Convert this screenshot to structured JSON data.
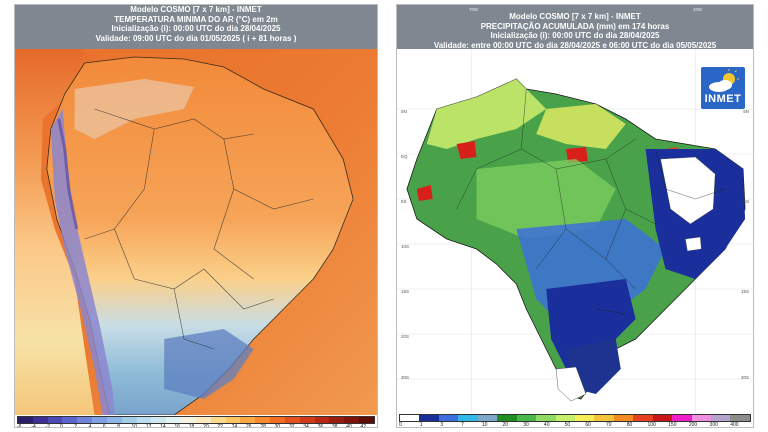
{
  "left": {
    "header": {
      "line1": "Modelo COSMO [7 x 7 km] - INMET",
      "line2": "TEMPERATURA MINIMA DO AR (°C) em 2m",
      "line3": "Inicialização (i): 00:00 UTC do dia 28/04/2025",
      "line4": "Validade: 09:00 UTC do dia 01/05/2025 ( i + 81 horas )"
    },
    "legend_ticks": [
      "-6",
      "-4",
      "-2",
      "0",
      "2",
      "4",
      "6",
      "8",
      "10",
      "12",
      "14",
      "16",
      "18",
      "20",
      "22",
      "24",
      "26",
      "28",
      "30",
      "32",
      "34",
      "36",
      "38",
      "40",
      "42"
    ],
    "legend_colors": [
      "#2a1d6b",
      "#3a3096",
      "#4c48b8",
      "#5b63cf",
      "#6d82d8",
      "#7f9fe0",
      "#8fb7e5",
      "#a4cdea",
      "#b9ddee",
      "#cfe8f0",
      "#e3f2f3",
      "#f3f3e3",
      "#fbe9bf",
      "#fcd98f",
      "#fdc463",
      "#fda743",
      "#f98a30",
      "#f26c25",
      "#e4511d",
      "#cf3a17",
      "#b62812",
      "#9a1c0f",
      "#7c120a",
      "#5c0a06"
    ],
    "colors": {
      "ocean": "#e86a2a",
      "land_north": "#f49a4a",
      "land_center": "#f7b36a",
      "south": "#9fc6e0",
      "andes": "#8a86d0"
    }
  },
  "right": {
    "header": {
      "line1": "Modelo COSMO [7 x 7 km] - INMET",
      "line2": "PRECIPITAÇÃO ACUMULADA (mm) em 174 horas",
      "line3": "Inicialização (i): 00:00 UTC do dia 28/04/2025",
      "line4": "Validade: entre 00:00 UTC do dia 28/04/2025 e 06:00 UTC do dia 05/05/2025"
    },
    "legend_ticks": [
      "0",
      "1",
      "3",
      "7",
      "10",
      "20",
      "30",
      "40",
      "50",
      "60",
      "70",
      "80",
      "100",
      "150",
      "200",
      "300",
      "400"
    ],
    "legend_colors": [
      "#ffffff",
      "#1a2f9c",
      "#3f6fdc",
      "#33b7e8",
      "#7fa7c7",
      "#1f8f1f",
      "#4cb84c",
      "#8fdc62",
      "#c8ef6a",
      "#f7ef5a",
      "#f7c33a",
      "#f38b23",
      "#e7401c",
      "#c81818",
      "#f01ec8",
      "#f08ee0",
      "#b4a4cc",
      "#8c8c8c"
    ],
    "logo_text": "INMET",
    "coords_left": [
      "5N",
      "EQ",
      "5S",
      "10S",
      "15S",
      "20S",
      "25S",
      "30S"
    ],
    "coords_right": [
      "5N",
      "EQ",
      "5S",
      "10S",
      "15S",
      "20S",
      "25S",
      "30S"
    ],
    "coords_top": [
      "70W",
      "40W"
    ]
  }
}
